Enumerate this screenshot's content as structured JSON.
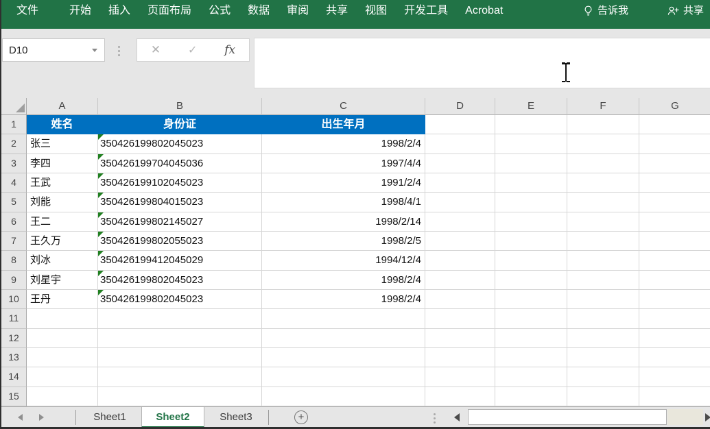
{
  "ribbon": {
    "tabs": [
      "文件",
      "开始",
      "插入",
      "页面布局",
      "公式",
      "数据",
      "审阅",
      "共享",
      "视图",
      "开发工具",
      "Acrobat"
    ],
    "tell_me_label": "告诉我",
    "share_label": "共享"
  },
  "formula_bar": {
    "cell_reference": "D10",
    "cancel_glyph": "✕",
    "enter_glyph": "✓",
    "fx_glyph": "fx",
    "formula_value": ""
  },
  "grid": {
    "column_headers": [
      "A",
      "B",
      "C",
      "D",
      "E",
      "F",
      "G"
    ],
    "row_numbers": [
      "1",
      "2",
      "3",
      "4",
      "5",
      "6",
      "7",
      "8",
      "9",
      "10",
      "11",
      "12",
      "13",
      "14",
      "15"
    ],
    "row_count": 15,
    "header_row": [
      "姓名",
      "身份证",
      "出生年月"
    ],
    "rows": [
      {
        "name": "张三",
        "id": "350426199802045023",
        "date": "1998/2/4"
      },
      {
        "name": "李四",
        "id": "350426199704045036",
        "date": "1997/4/4"
      },
      {
        "name": "王武",
        "id": "350426199102045023",
        "date": "1991/2/4"
      },
      {
        "name": "刘能",
        "id": "350426199804015023",
        "date": "1998/4/1"
      },
      {
        "name": "王二",
        "id": "350426199802145027",
        "date": "1998/2/14"
      },
      {
        "name": "王久万",
        "id": "350426199802055023",
        "date": "1998/2/5"
      },
      {
        "name": "刘冰",
        "id": "350426199412045029",
        "date": "1994/12/4"
      },
      {
        "name": "刘星宇",
        "id": "350426199802045023",
        "date": "1998/2/4"
      },
      {
        "name": "王丹",
        "id": "350426199802045023",
        "date": "1998/2/4"
      }
    ]
  },
  "sheet_bar": {
    "tabs": [
      {
        "label": "Sheet1",
        "active": false
      },
      {
        "label": "Sheet2",
        "active": true
      },
      {
        "label": "Sheet3",
        "active": false
      }
    ],
    "add_sheet_glyph": "+"
  },
  "colors": {
    "ribbon_green": "#217346",
    "header_fill_blue": "#0070C0",
    "active_sheet_green": "#217346",
    "error_indicator_green": "#218021",
    "chrome_gray": "#E6E6E6",
    "gridline_gray": "#D6D6D6"
  }
}
